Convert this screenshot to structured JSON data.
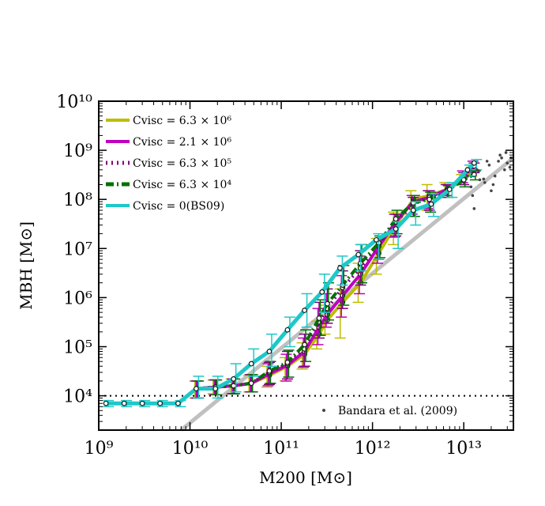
{
  "chart_data": {
    "type": "line",
    "x_scale": "log",
    "y_scale": "log",
    "xlim": [
      1000000000.0,
      35000000000000.0
    ],
    "ylim": [
      2000.0,
      10000000000.0
    ],
    "xlabel": "M200 [M⊙]",
    "ylabel": "MBH [M⊙]",
    "x_tick_labels": [
      "10⁹",
      "10¹⁰",
      "10¹¹",
      "10¹²",
      "10¹³"
    ],
    "y_tick_labels": [
      "10⁴",
      "10⁵",
      "10⁶",
      "10⁷",
      "10⁸",
      "10⁹",
      "10¹⁰"
    ],
    "legend_position": "top-left",
    "reference_line": {
      "label": "",
      "y": 10000,
      "style": "dotted"
    },
    "grey_relation": {
      "color": "#c0c0c0",
      "points": [
        [
          8000000000.0,
          2000
        ],
        [
          35000000000000.0,
          700000000.0
        ]
      ]
    },
    "series": [
      {
        "name": "Cvisc = 6.3 × 10⁶",
        "legend_label": "C_visc = 6.3 × 10^6",
        "color": "#bdbd00",
        "style": "solid",
        "x": [
          12000000000.0,
          19000000000.0,
          30000000000.0,
          47000000000.0,
          74000000000.0,
          117000000000.0,
          180000000000.0,
          260000000000.0,
          320000000000.0,
          470000000000.0,
          740000000000.0,
          1170000000000.0,
          1800000000000.0,
          2800000000000.0,
          4200000000000.0,
          6600000000000.0,
          10000000000000.0,
          13000000000000.0
        ],
        "y": [
          14000,
          15000,
          16000,
          18000,
          26000,
          40000,
          70000,
          180000,
          350000,
          800000,
          2000000,
          8000000,
          30000000,
          100000000,
          120000000,
          160000000,
          250000000,
          400000000
        ],
        "err_low": [
          9000,
          11000,
          11000,
          12000,
          15000,
          20000,
          35000,
          90000,
          180000,
          150000,
          800000,
          3000000,
          12000000,
          50000000,
          60000000,
          120000000,
          200000000,
          300000000
        ],
        "err_high": [
          20000,
          21000,
          22000,
          26000,
          40000,
          60000,
          120000,
          330000,
          700000,
          1500000,
          5000000,
          16000000,
          55000000,
          150000000,
          200000000,
          220000000,
          320000000,
          450000000
        ]
      },
      {
        "name": "Cvisc = 2.1 × 10⁶",
        "legend_label": "C_visc = 2.1 × 10^6",
        "color": "#c000c0",
        "style": "solid",
        "x": [
          12000000000.0,
          19000000000.0,
          30000000000.0,
          47000000000.0,
          74000000000.0,
          117000000000.0,
          180000000000.0,
          260000000000.0,
          320000000000.0,
          470000000000.0,
          740000000000.0,
          1170000000000.0,
          1800000000000.0,
          2800000000000.0,
          4200000000000.0,
          6600000000000.0,
          10000000000000.0,
          13000000000000.0
        ],
        "y": [
          14000,
          15000,
          16000,
          18000,
          28000,
          42000,
          80000,
          250000,
          450000,
          1100000,
          3000000,
          11000000,
          35000000,
          90000000,
          110000000,
          160000000,
          300000000,
          550000000
        ],
        "err_low": [
          9000,
          10500,
          11000,
          12000,
          16000,
          20000,
          38000,
          110000,
          250000,
          400000,
          1200000,
          5000000,
          17000000,
          50000000,
          65000000,
          120000000,
          220000000,
          400000000
        ],
        "err_high": [
          20000,
          21000,
          22000,
          27000,
          45000,
          70000,
          150000,
          600000,
          1200000,
          2800000,
          7000000,
          14000000,
          50000000,
          120000000,
          150000000,
          200000000,
          380000000,
          600000000
        ]
      },
      {
        "name": "Cvisc = 6.3 × 10⁵",
        "legend_label": "C_visc = 6.3 × 10^5",
        "color": "#800080",
        "style": "dotted",
        "x": [
          12000000000.0,
          19000000000.0,
          30000000000.0,
          47000000000.0,
          74000000000.0,
          117000000000.0,
          180000000000.0,
          260000000000.0,
          320000000000.0,
          470000000000.0,
          740000000000.0,
          1170000000000.0,
          1800000000000.0,
          2800000000000.0,
          4200000000000.0,
          6600000000000.0,
          10000000000000.0,
          13000000000000.0
        ],
        "y": [
          14000,
          15000,
          16000,
          18000,
          30000,
          45000,
          90000,
          320000,
          600000,
          1600000,
          4000000,
          12000000,
          35000000,
          80000000,
          110000000,
          150000000,
          280000000,
          480000000
        ],
        "err_low": [
          9000,
          10500,
          11000,
          12000,
          17000,
          22000,
          40000,
          150000,
          300000,
          600000,
          1800000,
          6000000,
          18000000,
          45000000,
          60000000,
          110000000,
          200000000,
          350000000
        ],
        "err_high": [
          20000,
          21000,
          22000,
          27000,
          48000,
          80000,
          180000,
          800000,
          1500000,
          3500000,
          9000000,
          15000000,
          50000000,
          110000000,
          150000000,
          200000000,
          350000000,
          550000000
        ]
      },
      {
        "name": "Cvisc = 6.3 × 10⁴",
        "legend_label": "C_visc = 6.3 × 10^4",
        "color": "#007000",
        "style": "dashdot",
        "x": [
          12000000000.0,
          19000000000.0,
          30000000000.0,
          47000000000.0,
          74000000000.0,
          117000000000.0,
          180000000000.0,
          260000000000.0,
          320000000000.0,
          470000000000.0,
          740000000000.0,
          1170000000000.0,
          1800000000000.0,
          2800000000000.0,
          4200000000000.0,
          6600000000000.0,
          10000000000000.0,
          13000000000000.0
        ],
        "y": [
          14000,
          15000,
          16000,
          18000,
          32000,
          48000,
          110000,
          380000,
          750000,
          1800000,
          5000000,
          13000000,
          40000000,
          85000000,
          100000000,
          150000000,
          250000000,
          320000000
        ],
        "err_low": [
          9000,
          10500,
          11000,
          12000,
          18000,
          24000,
          50000,
          170000,
          350000,
          700000,
          2000000,
          6500000,
          20000000,
          45000000,
          55000000,
          110000000,
          180000000,
          250000000
        ],
        "err_high": [
          20000,
          21000,
          22000,
          27000,
          50000,
          85000,
          220000,
          900000,
          2000000,
          4500000,
          12000000,
          18000000,
          60000000,
          120000000,
          140000000,
          190000000,
          300000000,
          380000000
        ]
      },
      {
        "name": "Cvisc = 0(BS09)",
        "legend_label": "C_visc = 0 (BS09)",
        "color": "#1ec8c8",
        "style": "solid",
        "x": [
          1200000000.0,
          1900000000.0,
          3000000000.0,
          4700000000.0,
          7400000000.0,
          11700000000.0,
          19000000000.0,
          30000000000.0,
          47000000000.0,
          74000000000.0,
          117000000000.0,
          180000000000.0,
          280000000000.0,
          440000000000.0,
          700000000000.0,
          1100000000000.0,
          1800000000000.0,
          2800000000000.0,
          4400000000000.0,
          7000000000000.0,
          11000000000000.0,
          13000000000000.0
        ],
        "y": [
          7000,
          7000,
          7000,
          7000,
          7000,
          14000,
          14000,
          22000,
          45000,
          80000,
          220000,
          550000,
          1300000,
          4000000,
          7500000,
          15000000,
          25000000,
          60000000,
          80000000,
          160000000,
          400000000,
          550000000
        ],
        "err_low": [
          6000,
          6000,
          6000,
          6000,
          6000,
          9000,
          9000,
          12000,
          25000,
          40000,
          100000,
          250000,
          500000,
          1800000,
          3500000,
          6000000,
          10000000,
          30000000,
          45000000,
          110000000,
          300000000,
          400000000
        ],
        "err_high": [
          8000,
          8000,
          8000,
          8000,
          8000,
          25000,
          25000,
          45000,
          90000,
          180000,
          400000,
          1200000,
          3000000,
          7000000,
          12000000,
          20000000,
          35000000,
          90000000,
          130000000,
          220000000,
          500000000,
          650000000
        ]
      }
    ],
    "observations": {
      "name": "Bandara et al. (2009)",
      "legend_label": "Bandara et al. (2009)",
      "color": "#444444",
      "x": [
        11000000000000.0,
        12000000000000.0,
        13000000000000.0,
        14000000000000.0,
        15000000000000.0,
        17000000000000.0,
        19000000000000.0,
        20000000000000.0,
        22000000000000.0,
        24000000000000.0,
        26000000000000.0,
        28000000000000.0,
        30000000000000.0,
        32000000000000.0,
        12500000000000.0,
        14500000000000.0,
        16500000000000.0,
        18000000000000.0,
        21000000000000.0,
        25000000000000.0,
        29000000000000.0,
        33000000000000.0
      ],
      "y": [
        300000000,
        180000000,
        65000000,
        400000000,
        250000000,
        220000000,
        500000000,
        150000000,
        300000000,
        600000000,
        700000000,
        400000000,
        550000000,
        450000000,
        120000000,
        380000000,
        260000000,
        600000000,
        200000000,
        800000000,
        900000000,
        700000000
      ]
    }
  }
}
